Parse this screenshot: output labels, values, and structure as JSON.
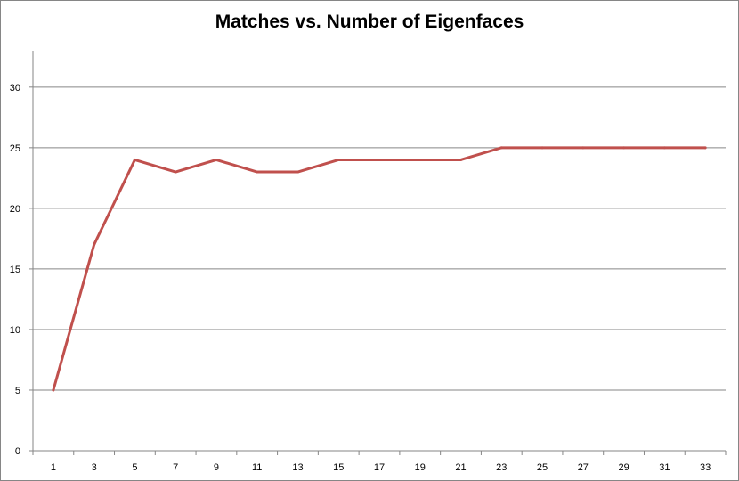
{
  "chart_data": {
    "type": "line",
    "title": "Matches vs. Number of Eigenfaces",
    "xlabel": "",
    "ylabel": "",
    "x": [
      1,
      3,
      5,
      7,
      9,
      11,
      13,
      15,
      17,
      19,
      21,
      23,
      25,
      27,
      29,
      31,
      33
    ],
    "series": [
      {
        "values": [
          5,
          17,
          24,
          23,
          24,
          23,
          23,
          24,
          24,
          24,
          24,
          25,
          25,
          25,
          25,
          25,
          25
        ]
      }
    ],
    "ylim": [
      0,
      33
    ],
    "yticks": [
      0,
      5,
      10,
      15,
      20,
      25,
      30
    ],
    "grid": "horizontal",
    "legend": "none",
    "colors": {
      "line": "#c0504d",
      "grid": "#868686",
      "axis": "#868686"
    }
  }
}
